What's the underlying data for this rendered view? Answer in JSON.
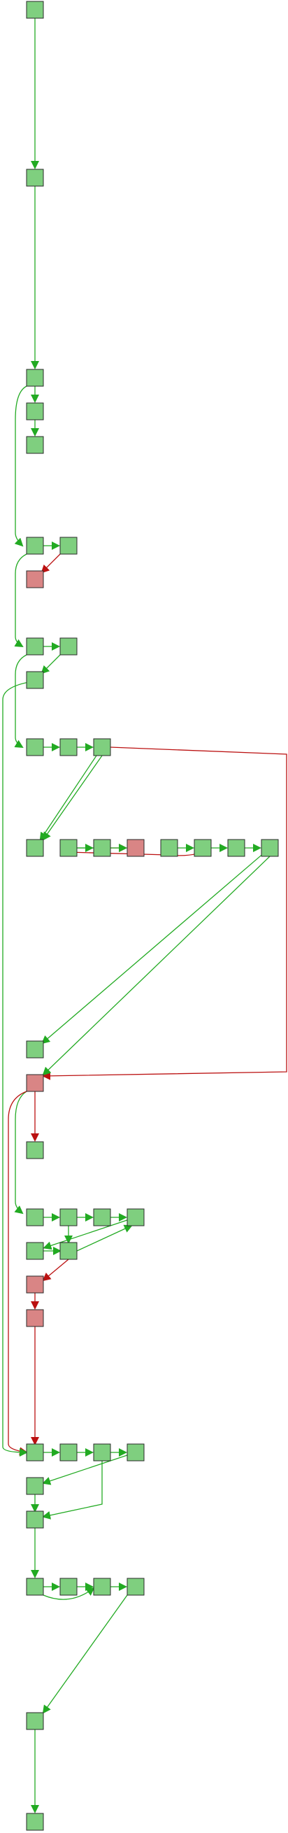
{
  "colors": {
    "background": "#ffffff",
    "ok_fill": "#7fcf7f",
    "ok_edge": "#22aa22",
    "fail_fill": "#d98585",
    "fail_edge": "#bb1111",
    "node_border": "#2a2a2a"
  },
  "nodes": [
    {
      "id": "n1",
      "status": "ok"
    },
    {
      "id": "n2",
      "status": "ok"
    },
    {
      "id": "n3",
      "status": "ok"
    },
    {
      "id": "n4",
      "status": "ok"
    },
    {
      "id": "n5",
      "status": "ok"
    },
    {
      "id": "n6",
      "status": "ok"
    },
    {
      "id": "n7",
      "status": "ok"
    },
    {
      "id": "n8",
      "status": "fail"
    },
    {
      "id": "n9",
      "status": "ok"
    },
    {
      "id": "n10",
      "status": "ok"
    },
    {
      "id": "n11",
      "status": "ok"
    },
    {
      "id": "n12",
      "status": "ok"
    },
    {
      "id": "n13",
      "status": "ok"
    },
    {
      "id": "n14",
      "status": "ok"
    },
    {
      "id": "n15",
      "status": "ok"
    },
    {
      "id": "n16",
      "status": "ok"
    },
    {
      "id": "n17",
      "status": "ok"
    },
    {
      "id": "n18",
      "status": "fail"
    },
    {
      "id": "n19",
      "status": "ok"
    },
    {
      "id": "n20",
      "status": "ok"
    },
    {
      "id": "n21",
      "status": "ok"
    },
    {
      "id": "n22",
      "status": "ok"
    },
    {
      "id": "n23",
      "status": "ok"
    },
    {
      "id": "n24",
      "status": "fail"
    },
    {
      "id": "n25",
      "status": "ok"
    },
    {
      "id": "n26",
      "status": "ok"
    },
    {
      "id": "n27",
      "status": "ok"
    },
    {
      "id": "n28",
      "status": "ok"
    },
    {
      "id": "n29",
      "status": "ok"
    },
    {
      "id": "n30",
      "status": "ok"
    },
    {
      "id": "n31",
      "status": "ok"
    },
    {
      "id": "n32",
      "status": "fail"
    },
    {
      "id": "n33",
      "status": "fail"
    },
    {
      "id": "n34",
      "status": "ok"
    },
    {
      "id": "n35",
      "status": "ok"
    },
    {
      "id": "n36",
      "status": "ok"
    },
    {
      "id": "n37",
      "status": "ok"
    },
    {
      "id": "n38",
      "status": "ok"
    },
    {
      "id": "n39",
      "status": "ok"
    },
    {
      "id": "n40",
      "status": "ok"
    },
    {
      "id": "n41",
      "status": "ok"
    },
    {
      "id": "n42",
      "status": "ok"
    },
    {
      "id": "n43",
      "status": "ok"
    },
    {
      "id": "n44",
      "status": "ok"
    },
    {
      "id": "n45",
      "status": "ok"
    }
  ],
  "edges": [
    {
      "from": "n1",
      "to": "n2",
      "status": "ok"
    },
    {
      "from": "n2",
      "to": "n3",
      "status": "ok"
    },
    {
      "from": "n3",
      "to": "n4",
      "status": "ok"
    },
    {
      "from": "n4",
      "to": "n5",
      "status": "ok"
    },
    {
      "from": "n3",
      "to": "n6",
      "status": "ok"
    },
    {
      "from": "n6",
      "to": "n7",
      "status": "ok"
    },
    {
      "from": "n7",
      "to": "n8",
      "status": "fail"
    },
    {
      "from": "n6",
      "to": "n9",
      "status": "ok"
    },
    {
      "from": "n9",
      "to": "n10",
      "status": "ok"
    },
    {
      "from": "n10",
      "to": "n11",
      "status": "ok"
    },
    {
      "from": "n9",
      "to": "n12",
      "status": "ok"
    },
    {
      "from": "n12",
      "to": "n13",
      "status": "ok"
    },
    {
      "from": "n13",
      "to": "n14",
      "status": "ok"
    },
    {
      "from": "n14",
      "to": "n15",
      "status": "ok"
    },
    {
      "from": "n15",
      "to": "n24",
      "status": "fail"
    },
    {
      "from": "n16",
      "to": "n17",
      "status": "ok"
    },
    {
      "from": "n17",
      "to": "n18",
      "status": "fail"
    },
    {
      "from": "n19",
      "to": "n20",
      "status": "ok"
    },
    {
      "from": "n20",
      "to": "n21",
      "status": "ok"
    },
    {
      "from": "n21",
      "to": "n22",
      "status": "ok"
    },
    {
      "from": "n22",
      "to": "n23",
      "status": "ok"
    },
    {
      "from": "n16",
      "to": "n18",
      "status": "ok"
    },
    {
      "from": "n20",
      "to": "n18",
      "status": "fail"
    },
    {
      "from": "n15",
      "to": "n16",
      "status": "ok"
    },
    {
      "from": "n23",
      "to": "n24",
      "status": "ok"
    },
    {
      "from": "n24",
      "to": "n25",
      "status": "fail"
    },
    {
      "from": "n24",
      "to": "n26",
      "status": "ok"
    },
    {
      "from": "n26",
      "to": "n27",
      "status": "ok"
    },
    {
      "from": "n27",
      "to": "n28",
      "status": "ok"
    },
    {
      "from": "n28",
      "to": "n29",
      "status": "ok"
    },
    {
      "from": "n29",
      "to": "n30",
      "status": "ok"
    },
    {
      "from": "n27",
      "to": "n31",
      "status": "ok"
    },
    {
      "from": "n30",
      "to": "n31",
      "status": "ok"
    },
    {
      "from": "n31",
      "to": "n28",
      "status": "ok"
    },
    {
      "from": "n31",
      "to": "n32",
      "status": "fail"
    },
    {
      "from": "n32",
      "to": "n33",
      "status": "fail"
    },
    {
      "from": "n33",
      "to": "n34",
      "status": "fail"
    },
    {
      "from": "n25",
      "to": "n34",
      "status": "fail"
    },
    {
      "from": "n11",
      "to": "n34",
      "status": "ok"
    },
    {
      "from": "n34",
      "to": "n35",
      "status": "ok"
    },
    {
      "from": "n35",
      "to": "n36",
      "status": "ok"
    },
    {
      "from": "n36",
      "to": "n37",
      "status": "ok"
    },
    {
      "from": "n37",
      "to": "n38",
      "status": "ok"
    },
    {
      "from": "n37",
      "to": "n39",
      "status": "ok"
    },
    {
      "from": "n34",
      "to": "n39",
      "status": "ok"
    },
    {
      "from": "n39",
      "to": "n40",
      "status": "ok"
    },
    {
      "from": "n40",
      "to": "n41",
      "status": "ok"
    },
    {
      "from": "n41",
      "to": "n42",
      "status": "ok"
    },
    {
      "from": "n42",
      "to": "n43",
      "status": "ok"
    },
    {
      "from": "n40",
      "to": "n42",
      "status": "ok"
    },
    {
      "from": "n43",
      "to": "n44",
      "status": "ok"
    },
    {
      "from": "n44",
      "to": "n45",
      "status": "ok"
    }
  ]
}
